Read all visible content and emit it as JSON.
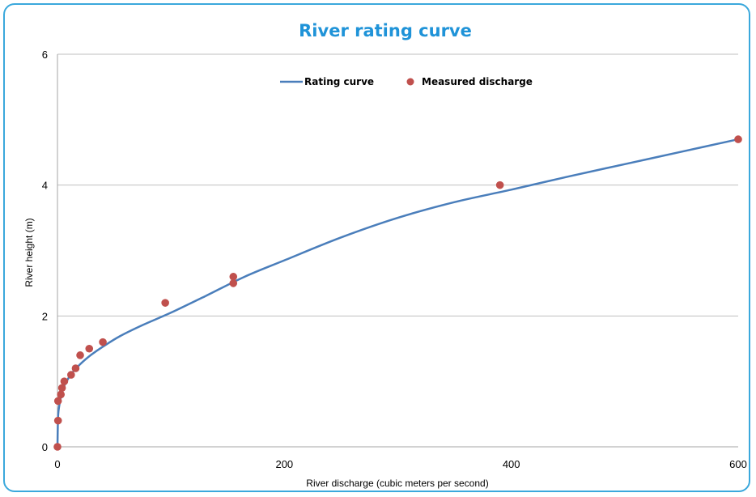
{
  "chart_data": {
    "type": "scatter",
    "title": "River rating curve",
    "xlabel": "River discharge (cubic meters per second)",
    "ylabel": "River height (m)",
    "xlim": [
      0,
      600
    ],
    "ylim": [
      0,
      6
    ],
    "x_ticks": [
      "0",
      "200",
      "400",
      "600"
    ],
    "y_ticks": [
      "0",
      "2",
      "4",
      "6"
    ],
    "grid": "horizontal",
    "legend_position": "top-center",
    "colors": {
      "curve": "#4a7ebb",
      "points": "#c0504d",
      "grid": "#bfbfbf",
      "border": "#3aa8dc",
      "title": "#1f93d8"
    },
    "series": [
      {
        "name": "Rating curve",
        "kind": "line",
        "x": [
          0,
          0.5,
          1.5,
          3,
          5,
          8,
          12,
          17,
          23,
          30,
          40,
          55,
          75,
          100,
          130,
          165,
          200,
          250,
          300,
          350,
          400,
          450,
          500,
          550,
          600
        ],
        "y": [
          0,
          0.45,
          0.62,
          0.76,
          0.89,
          1.0,
          1.11,
          1.21,
          1.31,
          1.41,
          1.53,
          1.69,
          1.86,
          2.05,
          2.3,
          2.6,
          2.85,
          3.2,
          3.5,
          3.74,
          3.93,
          4.13,
          4.32,
          4.51,
          4.7
        ]
      },
      {
        "name": "Measured discharge",
        "kind": "points",
        "x": [
          0,
          0.5,
          0.5,
          3,
          4,
          6,
          12,
          16,
          20,
          28,
          40,
          95,
          155,
          155,
          390,
          600
        ],
        "y": [
          0,
          0.4,
          0.7,
          0.8,
          0.9,
          1.0,
          1.1,
          1.2,
          1.4,
          1.5,
          1.6,
          2.2,
          2.6,
          2.5,
          4.0,
          4.7
        ]
      }
    ]
  }
}
